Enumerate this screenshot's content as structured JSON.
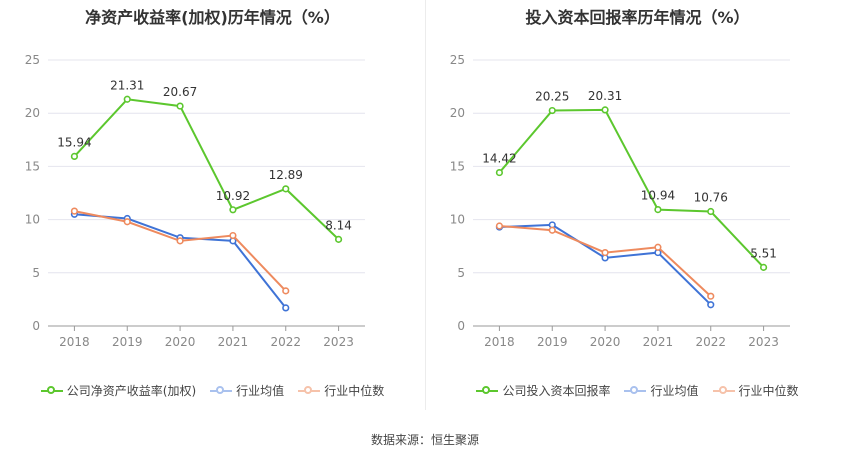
{
  "source_label": "数据来源：恒生聚源",
  "chart_data": [
    {
      "type": "line",
      "title": "净资产收益率(加权)历年情况（%）",
      "categories": [
        "2018",
        "2019",
        "2020",
        "2021",
        "2022",
        "2023"
      ],
      "ylim": [
        0,
        25
      ],
      "yticks": [
        0,
        5,
        10,
        15,
        20,
        25
      ],
      "series": [
        {
          "name": "公司净资产收益率(加权)",
          "color": "#5cc72e",
          "values": [
            15.94,
            21.31,
            20.67,
            10.92,
            12.89,
            8.14
          ],
          "labels": true
        },
        {
          "name": "行业均值",
          "color": "#3f73d6",
          "values": [
            10.5,
            10.1,
            8.3,
            8.0,
            1.7,
            null
          ],
          "labels": false
        },
        {
          "name": "行业中位数",
          "color": "#ee8a5e",
          "values": [
            10.8,
            9.8,
            8.0,
            8.5,
            3.3,
            null
          ],
          "labels": false
        }
      ]
    },
    {
      "type": "line",
      "title": "投入资本回报率历年情况（%）",
      "categories": [
        "2018",
        "2019",
        "2020",
        "2021",
        "2022",
        "2023"
      ],
      "ylim": [
        0,
        25
      ],
      "yticks": [
        0,
        5,
        10,
        15,
        20,
        25
      ],
      "series": [
        {
          "name": "公司投入资本回报率",
          "color": "#5cc72e",
          "values": [
            14.42,
            20.25,
            20.31,
            10.94,
            10.76,
            5.51
          ],
          "labels": true
        },
        {
          "name": "行业均值",
          "color": "#3f73d6",
          "values": [
            9.3,
            9.5,
            6.4,
            6.9,
            2.0,
            null
          ],
          "labels": false
        },
        {
          "name": "行业中位数",
          "color": "#ee8a5e",
          "values": [
            9.4,
            9.0,
            6.9,
            7.4,
            2.8,
            null
          ],
          "labels": false
        }
      ]
    }
  ]
}
